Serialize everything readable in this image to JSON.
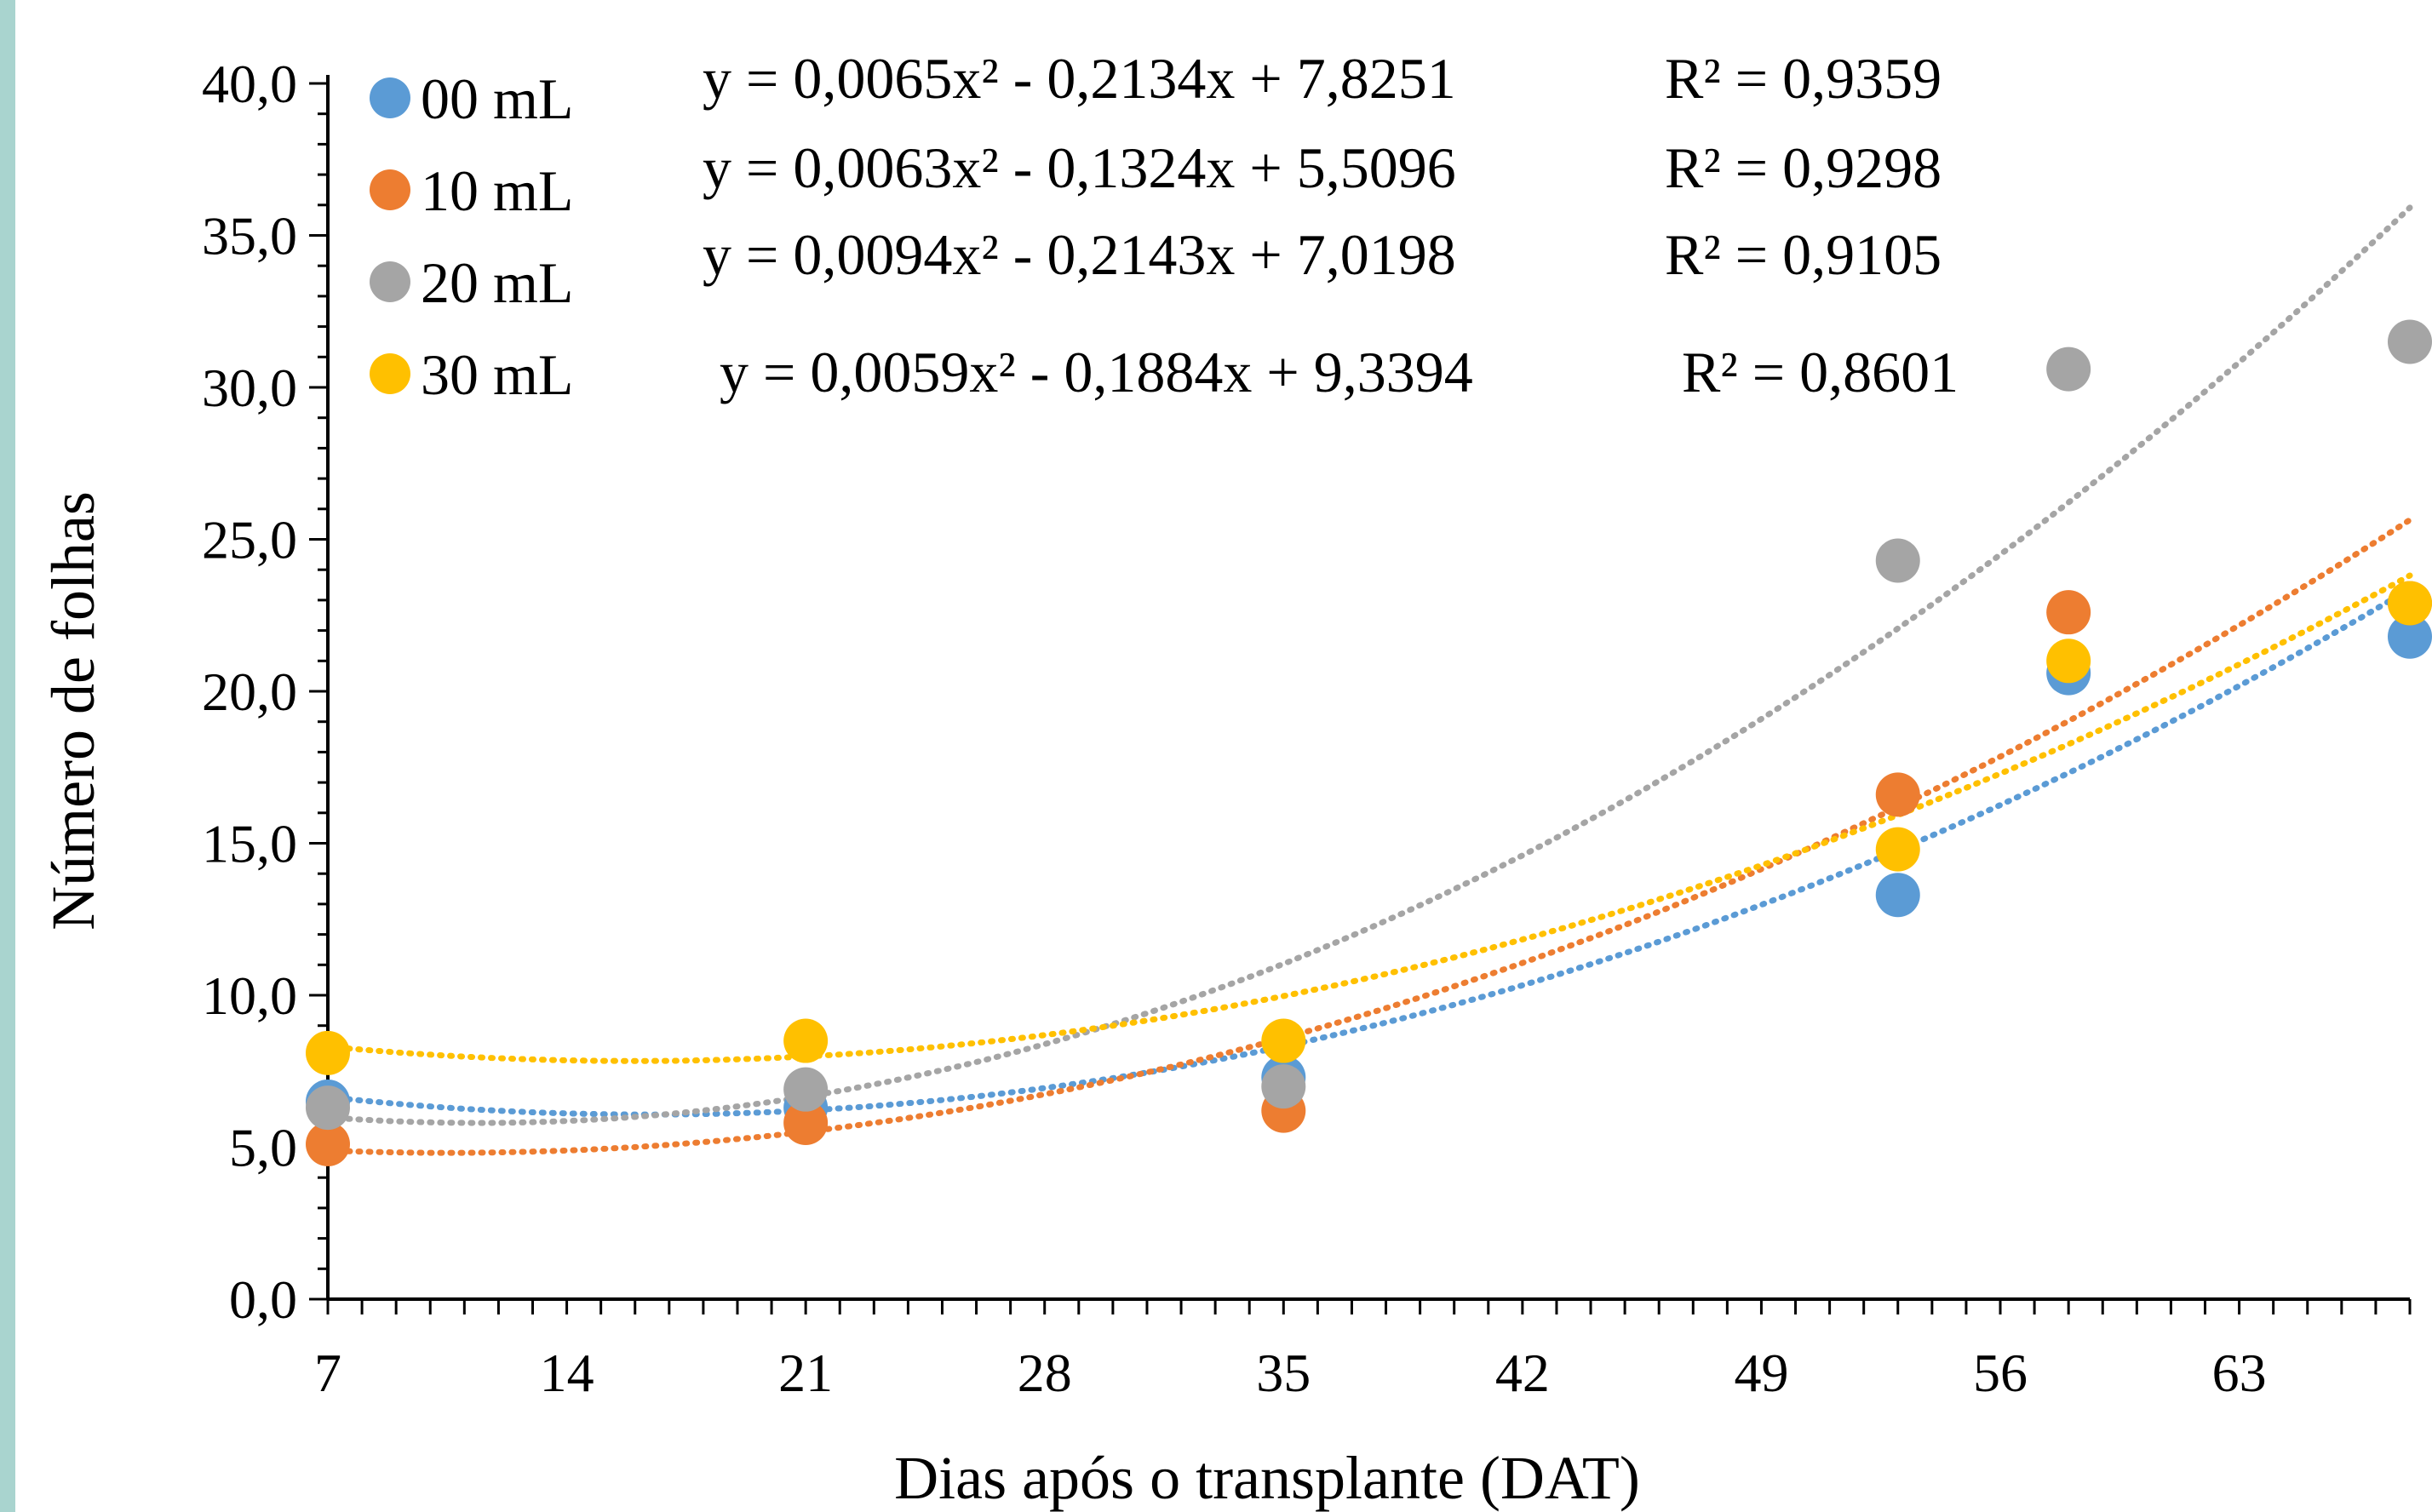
{
  "chart_data": {
    "type": "scatter",
    "xlabel": "Dias após o transplante (DAT)",
    "ylabel": "Número de folhas",
    "xlim": [
      7,
      68
    ],
    "ylim": [
      0,
      40
    ],
    "x_ticks": [
      7,
      14,
      21,
      28,
      35,
      42,
      49,
      56,
      63
    ],
    "x_tick_labels": [
      "7",
      "14",
      "21",
      "28",
      "35",
      "42",
      "49",
      "56",
      "63"
    ],
    "y_ticks": [
      0,
      5,
      10,
      15,
      20,
      25,
      30,
      35,
      40
    ],
    "y_tick_labels": [
      "0,0",
      "5,0",
      "10,0",
      "15,0",
      "20,0",
      "25,0",
      "30,0",
      "35,0",
      "40,0"
    ],
    "grid": false,
    "legend_position": "top-left",
    "series": [
      {
        "name": "00 mL",
        "color": "#5b9bd5",
        "x": [
          7,
          21,
          35,
          53,
          58,
          68
        ],
        "y": [
          6.5,
          6.3,
          7.3,
          13.3,
          20.6,
          21.8
        ],
        "trendline": {
          "type": "polynomial",
          "coefficients": [
            0.0065,
            -0.2134,
            7.8251
          ]
        },
        "equation": "y = 0,0065x² - 0,2134x + 7,8251",
        "r2": "R² = 0,9359"
      },
      {
        "name": "10 mL",
        "color": "#ed7d31",
        "x": [
          7,
          21,
          35,
          53,
          58,
          68
        ],
        "y": [
          5.1,
          5.8,
          6.2,
          16.6,
          22.6,
          22.9
        ],
        "trendline": {
          "type": "polynomial",
          "coefficients": [
            0.0063,
            -0.1324,
            5.5096
          ]
        },
        "equation": "y = 0,0063x² - 0,1324x + 5,5096",
        "r2": "R² = 0,9298"
      },
      {
        "name": "20 mL",
        "color": "#a5a5a5",
        "x": [
          7,
          21,
          35,
          53,
          58,
          68
        ],
        "y": [
          6.3,
          6.9,
          7.0,
          24.3,
          30.6,
          31.5
        ],
        "trendline": {
          "type": "polynomial",
          "coefficients": [
            0.0094,
            -0.2143,
            7.0198
          ]
        },
        "equation": "y = 0,0094x² - 0,2143x + 7,0198",
        "r2": "R² = 0,9105"
      },
      {
        "name": "30 mL",
        "color": "#ffc000",
        "x": [
          7,
          21,
          35,
          53,
          58,
          68
        ],
        "y": [
          8.1,
          8.5,
          8.5,
          14.8,
          21.0,
          22.9
        ],
        "trendline": {
          "type": "polynomial",
          "coefficients": [
            0.0059,
            -0.1884,
            9.3394
          ]
        },
        "equation": "y = 0,0059x² - 0,1884x + 9,3394",
        "r2": "R² = 0,8601"
      }
    ]
  }
}
